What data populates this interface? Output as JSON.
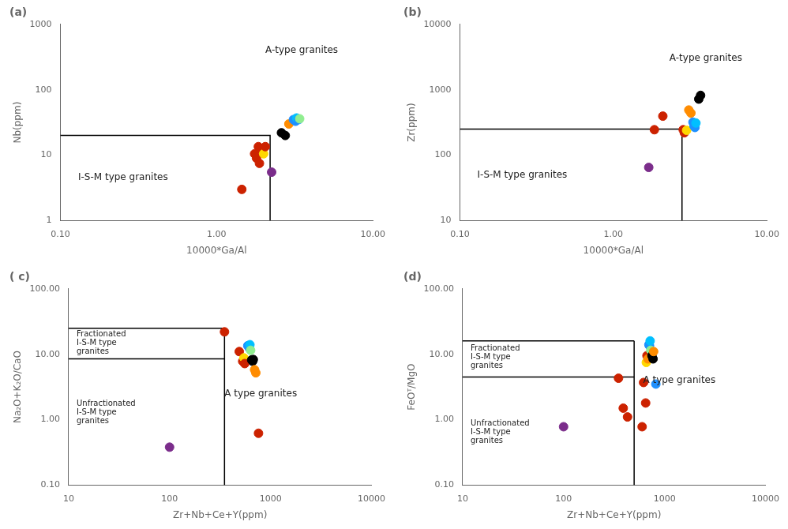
{
  "chart_data": [
    {
      "type": "scatter",
      "title": "(a)",
      "xlabel": "10000*Ga/Al",
      "ylabel": "Nb(ppm)",
      "log": true,
      "grid": false,
      "xlim": [
        0.1,
        10.0
      ],
      "ylim": [
        1,
        1000
      ],
      "xticks": [
        {
          "value": 0.1,
          "label": "0.10"
        },
        {
          "value": 1.0,
          "label": "1.00"
        },
        {
          "value": 10.0,
          "label": "10.00"
        }
      ],
      "yticks": [
        1,
        10,
        100,
        1000
      ],
      "series": [
        {
          "type": "scatter",
          "x": [
            1.45,
            1.75,
            1.8,
            1.85,
            1.9,
            1.88,
            2.0,
            2.05,
            2.25,
            2.6,
            2.75,
            2.9,
            3.1,
            3.2,
            3.25,
            3.35,
            3.4
          ],
          "values": [
            3.0,
            10.5,
            9.0,
            13.5,
            12.5,
            7.5,
            10.5,
            13.5,
            5.5,
            22.0,
            20.0,
            30.0,
            35.0,
            33.0,
            37.0,
            35.0,
            36.0
          ],
          "colors": [
            "#CC2200",
            "#CC2200",
            "#CC2200",
            "#CC2200",
            "#CC2200",
            "#CC2200",
            "#FFD700",
            "#CC2200",
            "#7B2D8B",
            "#000000",
            "#000000",
            "#FF8C00",
            "#1E90FF",
            "#1E90FF",
            "#00BFFF",
            "#1E90FF",
            "#90EE90"
          ]
        },
        {
          "type": "line",
          "color": "#000000",
          "x": [
            0.1,
            2.2,
            2.2
          ],
          "values": [
            20,
            20,
            1
          ]
        }
      ],
      "annotations": [
        {
          "text": "A-type granites",
          "x": 3.5,
          "y": 400,
          "align": "center"
        },
        {
          "text": "I-S-M type granites",
          "x": 0.13,
          "y": 4.5,
          "align": "left"
        }
      ]
    },
    {
      "type": "scatter",
      "title": "(b)",
      "xlabel": "10000*Ga/Al",
      "ylabel": "Zr(ppm)",
      "log": true,
      "grid": false,
      "xlim": [
        0.1,
        10.0
      ],
      "ylim": [
        10,
        10000
      ],
      "xticks": [
        {
          "value": 0.1,
          "label": "0.10"
        },
        {
          "value": 1.0,
          "label": "1.00"
        },
        {
          "value": 10.0,
          "label": "10.00"
        }
      ],
      "yticks": [
        10,
        100,
        1000,
        10000
      ],
      "series": [
        {
          "type": "scatter",
          "x": [
            1.7,
            1.85,
            2.1,
            2.85,
            2.9,
            3.0,
            3.1,
            3.2,
            3.3,
            3.35,
            3.4,
            3.45,
            3.6,
            3.7
          ],
          "values": [
            65,
            245,
            395,
            245,
            220,
            240,
            490,
            440,
            320,
            280,
            265,
            310,
            720,
            820
          ],
          "colors": [
            "#7B2D8B",
            "#CC2200",
            "#CC2200",
            "#CC2200",
            "#CC2200",
            "#FFD700",
            "#FF8C00",
            "#FF8C00",
            "#1E90FF",
            "#1E90FF",
            "#1E90FF",
            "#00BFFF",
            "#000000",
            "#000000"
          ]
        },
        {
          "type": "line",
          "color": "#000000",
          "x": [
            0.1,
            2.8,
            2.8
          ],
          "values": [
            250,
            250,
            10
          ]
        }
      ],
      "annotations": [
        {
          "text": "A-type granites",
          "x": 4.0,
          "y": 3000,
          "align": "center"
        },
        {
          "text": "I-S-M type granites",
          "x": 0.13,
          "y": 50,
          "align": "left"
        }
      ]
    },
    {
      "type": "scatter",
      "title": "( c)",
      "xlabel": "Zr+Nb+Ce+Y(ppm)",
      "ylabel": "Na₂O+K₂O/CaO",
      "log": true,
      "grid": false,
      "xlim": [
        10,
        10000
      ],
      "ylim": [
        0.1,
        100.0
      ],
      "xticks": [
        10,
        100,
        1000,
        10000
      ],
      "yticks": [
        {
          "value": 0.1,
          "label": "0.10"
        },
        {
          "value": 1.0,
          "label": "1.00"
        },
        {
          "value": 10.0,
          "label": "10.00"
        },
        {
          "value": 100.0,
          "label": "100.00"
        }
      ],
      "series": [
        {
          "type": "scatter",
          "x": [
            100,
            350,
            490,
            530,
            545,
            555,
            595,
            615,
            625,
            635,
            650,
            665,
            675,
            695,
            715,
            760
          ],
          "values": [
            0.38,
            22,
            11,
            7.8,
            8.8,
            7.2,
            13.5,
            12.5,
            14.0,
            11.5,
            8.2,
            7.8,
            8.3,
            5.8,
            5.2,
            0.62
          ],
          "colors": [
            "#7B2D8B",
            "#CC2200",
            "#CC2200",
            "#CC2200",
            "#FFD700",
            "#CC2200",
            "#1E90FF",
            "#1E90FF",
            "#00BFFF",
            "#90EE90",
            "#000000",
            "#000000",
            "#000000",
            "#FF8C00",
            "#FF8C00",
            "#CC2200"
          ]
        },
        {
          "type": "line",
          "color": "#000000",
          "x": [
            10,
            350
          ],
          "values": [
            25,
            25
          ]
        },
        {
          "type": "line",
          "color": "#000000",
          "x": [
            10,
            350
          ],
          "values": [
            8.5,
            8.5
          ]
        },
        {
          "type": "line",
          "color": "#000000",
          "x": [
            350,
            350
          ],
          "values": [
            0.1,
            25
          ]
        }
      ],
      "annotations": [
        {
          "text": "Fractionated\nI-S-M type\ngranites",
          "x": 12,
          "y": 15,
          "align": "left"
        },
        {
          "text": "Unfractionated\nI-S-M type\ngranites",
          "x": 12,
          "y": 1.3,
          "align": "left"
        },
        {
          "text": "A type granites",
          "x": 800,
          "y": 2.5,
          "align": "center"
        }
      ]
    },
    {
      "type": "scatter",
      "title": "(d)",
      "xlabel": "Zr+Nb+Ce+Y(ppm)",
      "ylabel": "FeOᵀ/MgO",
      "log": true,
      "grid": false,
      "xlim": [
        10,
        10000
      ],
      "ylim": [
        0.1,
        100.0
      ],
      "xticks": [
        10,
        100,
        1000,
        10000
      ],
      "yticks": [
        {
          "value": 0.1,
          "label": "0.10"
        },
        {
          "value": 1.0,
          "label": "1.00"
        },
        {
          "value": 10.0,
          "label": "10.00"
        },
        {
          "value": 100.0,
          "label": "100.00"
        }
      ],
      "series": [
        {
          "type": "scatter",
          "x": [
            100,
            350,
            390,
            430,
            600,
            620,
            650,
            660,
            670,
            685,
            700,
            710,
            720,
            730,
            750,
            770,
            780,
            820
          ],
          "values": [
            0.78,
            4.3,
            1.5,
            1.1,
            0.78,
            3.7,
            1.8,
            7.5,
            9.5,
            8.5,
            14.0,
            13.5,
            16.0,
            11.5,
            9.5,
            8.5,
            11.0,
            3.5
          ],
          "colors": [
            "#7B2D8B",
            "#CC2200",
            "#CC2200",
            "#CC2200",
            "#CC2200",
            "#CC2200",
            "#CC2200",
            "#FFD700",
            "#CC2200",
            "#FF8C00",
            "#1E90FF",
            "#1E90FF",
            "#00BFFF",
            "#90EE90",
            "#000000",
            "#000000",
            "#FF8C00",
            "#1E90FF"
          ]
        },
        {
          "type": "line",
          "color": "#000000",
          "x": [
            10,
            500
          ],
          "values": [
            16,
            16
          ]
        },
        {
          "type": "line",
          "color": "#000000",
          "x": [
            10,
            500
          ],
          "values": [
            4.5,
            4.5
          ]
        },
        {
          "type": "line",
          "color": "#000000",
          "x": [
            500,
            500
          ],
          "values": [
            0.1,
            16
          ]
        }
      ],
      "annotations": [
        {
          "text": "Fractionated\nI-S-M type\ngranites",
          "x": 12,
          "y": 9,
          "align": "left"
        },
        {
          "text": "Unfractionated\nI-S-M type\ngranites",
          "x": 12,
          "y": 0.65,
          "align": "left"
        },
        {
          "text": "A type granites",
          "x": 1400,
          "y": 4.0,
          "align": "center"
        }
      ]
    }
  ]
}
